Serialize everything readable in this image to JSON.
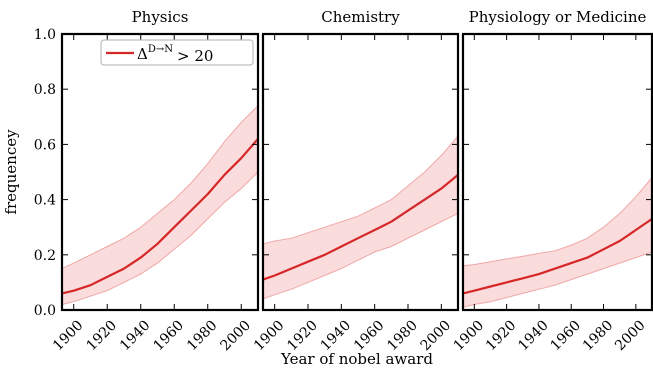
{
  "chart_data": {
    "type": "line",
    "shared": {
      "xlabel": "Year of nobel award",
      "ylabel": "frequencey",
      "xlim": [
        1893,
        2010
      ],
      "ylim": [
        0.0,
        1.0
      ],
      "xticks": [
        1900,
        1920,
        1940,
        1960,
        1980,
        2000
      ],
      "yticks": [
        0.0,
        0.2,
        0.4,
        0.6,
        0.8,
        1.0
      ],
      "ytick_labels": [
        "0.0",
        "0.2",
        "0.4",
        "0.6",
        "0.8",
        "1.0"
      ],
      "line_color": "#d62728",
      "band_color": "#f8c4c4",
      "legend": {
        "placement": "top-right of first panel",
        "label_base": "Δ",
        "label_sup": "D→N",
        "label_tail": "> 20"
      }
    },
    "panels": [
      {
        "title": "Physics",
        "series": [
          {
            "x": [
              1893,
              1900,
              1910,
              1920,
              1930,
              1940,
              1950,
              1960,
              1970,
              1980,
              1990,
              2000,
              2010
            ],
            "values": [
              0.06,
              0.07,
              0.09,
              0.12,
              0.15,
              0.19,
              0.24,
              0.3,
              0.36,
              0.42,
              0.49,
              0.55,
              0.62
            ],
            "lower": [
              0.02,
              0.03,
              0.05,
              0.07,
              0.1,
              0.13,
              0.17,
              0.22,
              0.27,
              0.33,
              0.39,
              0.44,
              0.5
            ],
            "upper": [
              0.15,
              0.17,
              0.2,
              0.23,
              0.26,
              0.3,
              0.35,
              0.4,
              0.46,
              0.53,
              0.61,
              0.68,
              0.74
            ]
          }
        ]
      },
      {
        "title": "Chemistry",
        "series": [
          {
            "x": [
              1893,
              1900,
              1910,
              1920,
              1930,
              1940,
              1950,
              1960,
              1970,
              1980,
              1990,
              2000,
              2010
            ],
            "values": [
              0.11,
              0.125,
              0.15,
              0.175,
              0.2,
              0.23,
              0.26,
              0.29,
              0.32,
              0.36,
              0.4,
              0.44,
              0.49
            ],
            "lower": [
              0.04,
              0.055,
              0.075,
              0.1,
              0.125,
              0.15,
              0.18,
              0.21,
              0.23,
              0.26,
              0.29,
              0.32,
              0.35
            ],
            "upper": [
              0.24,
              0.25,
              0.26,
              0.28,
              0.3,
              0.32,
              0.34,
              0.37,
              0.4,
              0.45,
              0.5,
              0.56,
              0.63
            ]
          }
        ]
      },
      {
        "title": "Physiology or Medicine",
        "series": [
          {
            "x": [
              1893,
              1900,
              1910,
              1920,
              1930,
              1940,
              1950,
              1960,
              1970,
              1980,
              1990,
              2000,
              2010
            ],
            "values": [
              0.06,
              0.07,
              0.085,
              0.1,
              0.115,
              0.13,
              0.15,
              0.17,
              0.19,
              0.22,
              0.25,
              0.29,
              0.33
            ],
            "lower": [
              0.01,
              0.02,
              0.03,
              0.045,
              0.06,
              0.075,
              0.09,
              0.11,
              0.13,
              0.15,
              0.17,
              0.19,
              0.21
            ],
            "upper": [
              0.16,
              0.165,
              0.175,
              0.185,
              0.195,
              0.205,
              0.215,
              0.235,
              0.26,
              0.3,
              0.35,
              0.41,
              0.48
            ]
          }
        ]
      }
    ]
  }
}
